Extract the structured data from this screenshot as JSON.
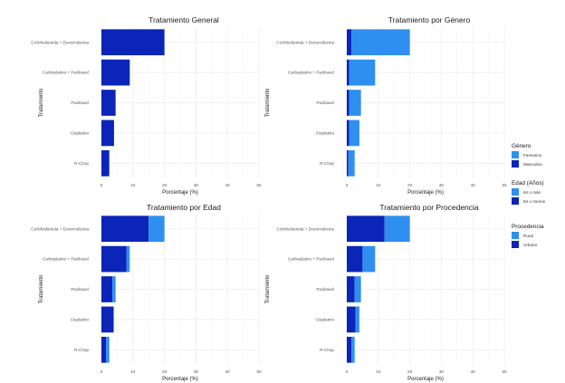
{
  "colors": {
    "dark": "#0a25b8",
    "light": "#2f8ff0",
    "grid": "#ebebeb"
  },
  "shared": {
    "xlabel": "Porcentaje (%)",
    "ylabel": "Tratamiento",
    "xticks": [
      "0",
      "10",
      "20",
      "30",
      "40",
      "50"
    ],
    "xlim": [
      0,
      50
    ]
  },
  "legends": [
    {
      "title": "Género",
      "items": [
        {
          "label": "Femenino",
          "color": "#2f8ff0"
        },
        {
          "label": "Masculino",
          "color": "#0a25b8"
        }
      ]
    },
    {
      "title": "Edad (Años)",
      "items": [
        {
          "label": "64 o más",
          "color": "#2f8ff0"
        },
        {
          "label": "64 o menos",
          "color": "#0a25b8"
        }
      ]
    },
    {
      "title": "Procedencia",
      "items": [
        {
          "label": "Rural",
          "color": "#2f8ff0"
        },
        {
          "label": "Urbano",
          "color": "#0a25b8"
        }
      ]
    }
  ],
  "chart_data": [
    {
      "type": "bar",
      "orientation": "horizontal",
      "stacked": true,
      "title": "Tratamiento General",
      "categories": [
        "Ciclofosfamida + Doxorrubicina",
        "Carboplatino + Paclitaxel",
        "Paclitaxel",
        "Cisplatino",
        "R-Chop"
      ],
      "series": [
        {
          "name": "General",
          "values": [
            20,
            9,
            4.5,
            4,
            2.5
          ]
        }
      ]
    },
    {
      "type": "bar",
      "orientation": "horizontal",
      "stacked": true,
      "title": "Tratamiento por Género",
      "categories": [
        "Ciclofosfamida + Doxorrubicina",
        "Carboplatino + Paclitaxel",
        "Paclitaxel",
        "Cisplatino",
        "R-Chop"
      ],
      "series": [
        {
          "name": "Masculino",
          "values": [
            1.5,
            0.8,
            0.8,
            0.8,
            0.5
          ]
        },
        {
          "name": "Femenino",
          "values": [
            18.5,
            8.2,
            3.7,
            3.2,
            2.0
          ]
        }
      ]
    },
    {
      "type": "bar",
      "orientation": "horizontal",
      "stacked": true,
      "title": "Tratamiento por Edad",
      "categories": [
        "Ciclofosfamida + Doxorrubicina",
        "Carboplatino + Paclitaxel",
        "Paclitaxel",
        "Cisplatino",
        "R-Chop"
      ],
      "series": [
        {
          "name": "64 o menos",
          "values": [
            15,
            8,
            3.5,
            3.8,
            1.5
          ]
        },
        {
          "name": "64 o más",
          "values": [
            5,
            1,
            1,
            0.2,
            1
          ]
        }
      ]
    },
    {
      "type": "bar",
      "orientation": "horizontal",
      "stacked": true,
      "title": "Tratamiento por Procedencia",
      "categories": [
        "Ciclofosfamida + Doxorrubicina",
        "Carboplatino + Paclitaxel",
        "Paclitaxel",
        "Cisplatino",
        "R-Chop"
      ],
      "series": [
        {
          "name": "Urbano",
          "values": [
            12,
            5,
            2.5,
            2.8,
            1.5
          ]
        },
        {
          "name": "Rural",
          "values": [
            8,
            4,
            2,
            1.2,
            1
          ]
        }
      ]
    }
  ]
}
